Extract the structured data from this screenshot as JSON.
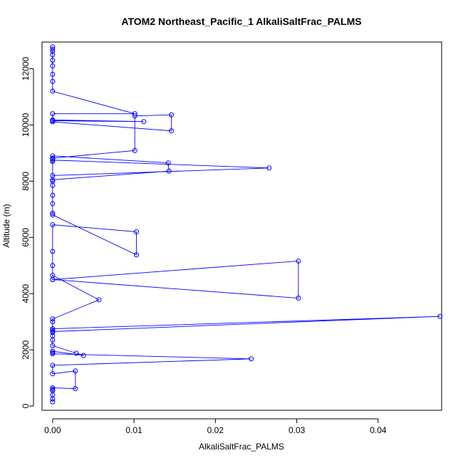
{
  "chart_data": {
    "type": "line",
    "markers": "open-circle",
    "title": "ATOM2 Northeast_Pacific_1 AlkaliSaltFrac_PALMS",
    "xlabel": "AlkaliSaltFrac_PALMS",
    "ylabel": "Altitude (m)",
    "xlim": [
      -0.0013,
      0.0478
    ],
    "ylim": [
      -150,
      12950
    ],
    "xticks": [
      0.0,
      0.01,
      0.02,
      0.03,
      0.04
    ],
    "xtick_labels": [
      "0.00",
      "0.01",
      "0.02",
      "0.03",
      "0.04"
    ],
    "yticks": [
      0,
      2000,
      4000,
      6000,
      8000,
      10000,
      12000
    ],
    "ytick_labels": [
      "0",
      "2000",
      "4000",
      "6000",
      "8000",
      "10000",
      "12000"
    ],
    "grid": false,
    "legend": "none",
    "series_color": "#0000ff",
    "series": [
      {
        "x": [
          0.0,
          0.0,
          0.0,
          0.0,
          0.0,
          0.0,
          0.0028,
          0.0028,
          0.0,
          0.0,
          0.0244,
          0.0,
          0.0,
          0.0,
          0.0038,
          0.0029,
          0.0,
          0.0,
          0.0,
          0.0,
          0.0,
          0.0,
          0.0476,
          0.0,
          0.0,
          0.0,
          0.0057,
          0.0,
          0.0,
          0.0302,
          0.0302,
          0.0,
          0.0,
          0.0,
          0.0,
          0.0103,
          0.0103,
          0.0,
          0.0,
          0.0,
          0.0,
          0.0,
          0.0,
          0.0,
          0.0266,
          0.0,
          0.0,
          0.0,
          0.0142,
          0.0143,
          0.0,
          0.0,
          0.0,
          0.0101,
          0.0101,
          0.0146,
          0.0146,
          0.0,
          0.0,
          0.0112,
          0.0,
          0.0,
          0.0101,
          0.0,
          0.0,
          0.0,
          0.0,
          0.0,
          0.0,
          0.0,
          0.0,
          0.0
        ],
        "y": [
          150,
          250,
          400,
          550,
          600,
          650,
          620,
          1250,
          1150,
          1450,
          1680,
          1860,
          1900,
          1950,
          1800,
          1880,
          2150,
          2350,
          2500,
          2620,
          2700,
          2750,
          3190,
          2650,
          3000,
          3100,
          3780,
          4650,
          4500,
          3840,
          5160,
          4500,
          5000,
          5500,
          6450,
          6200,
          5380,
          6800,
          6860,
          7200,
          7500,
          7850,
          8000,
          8200,
          8470,
          8750,
          8800,
          8900,
          8650,
          8360,
          8050,
          8700,
          8820,
          9090,
          10320,
          10360,
          9790,
          10110,
          10150,
          10120,
          10180,
          10400,
          10400,
          11200,
          11550,
          11800,
          12100,
          12300,
          12500,
          12620,
          12700,
          12780
        ]
      }
    ]
  }
}
